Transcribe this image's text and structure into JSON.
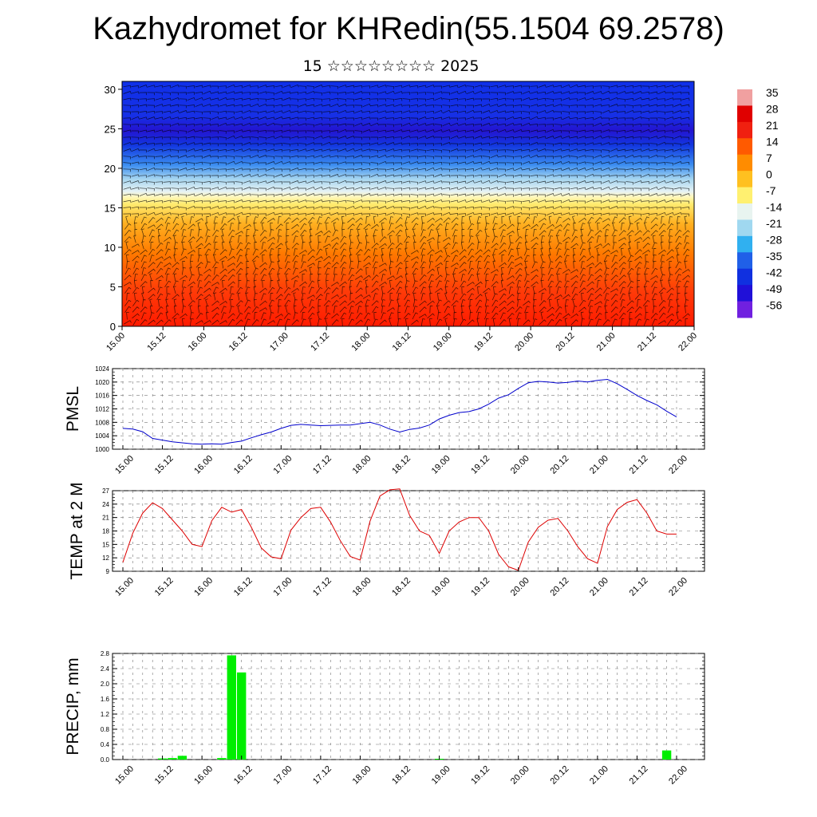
{
  "title": "Kazhydromet for KHRedin(55.1504 69.2578)",
  "subtitle": "15 ☆☆☆☆☆☆☆☆ 2025",
  "time_ticks": [
    "15.00",
    "15.12",
    "16.00",
    "16.12",
    "17.00",
    "17.12",
    "18.00",
    "18.12",
    "19.00",
    "19.12",
    "20.00",
    "20.12",
    "21.00",
    "21.12",
    "22.00"
  ],
  "colors": {
    "pmsl_line": "#0000cc",
    "temp_line": "#dd0000",
    "precip_bar": "#00ee00"
  },
  "chart_data": [
    {
      "type": "heatmap",
      "title": "",
      "ylabel": "",
      "ylim": [
        0,
        31
      ],
      "yticks": [
        0,
        5,
        10,
        15,
        20,
        25,
        30
      ],
      "colorbar": {
        "levels": [
          "35",
          "28",
          "21",
          "14",
          "7",
          "0",
          "-7",
          "-14",
          "-21",
          "-28",
          "-35",
          "-42",
          "-49",
          "-56"
        ],
        "colors": [
          "#f0a0a0",
          "#e00000",
          "#f02010",
          "#ff5a00",
          "#ff8c00",
          "#ffc020",
          "#fff070",
          "#e8f4f0",
          "#a0d8f0",
          "#30b0f0",
          "#2060e8",
          "#1030e0",
          "#2010d8",
          "#7020e0"
        ]
      },
      "wind_barbs": true
    },
    {
      "type": "line",
      "ylabel": "PMSL",
      "ylim": [
        1000,
        1024
      ],
      "yticks": [
        "1024",
        "1020",
        "1016",
        "1012",
        "1008",
        "1004",
        "1000"
      ],
      "x": [
        0,
        3,
        6,
        9,
        12,
        15,
        18,
        21,
        24,
        27,
        30,
        33,
        36,
        39,
        42,
        45,
        48,
        51,
        54,
        57,
        60,
        63,
        66,
        69,
        72,
        75,
        78,
        81,
        84,
        87,
        90,
        93,
        96,
        99,
        102,
        105,
        108,
        111,
        114,
        117,
        120,
        123,
        126,
        129,
        132,
        135,
        138,
        141,
        144,
        147,
        150,
        153,
        156,
        159,
        162,
        165,
        168
      ],
      "values": [
        1006.2,
        1006.0,
        1005.2,
        1003.2,
        1002.7,
        1002.2,
        1001.9,
        1001.6,
        1001.5,
        1001.6,
        1001.5,
        1002.0,
        1002.4,
        1003.4,
        1004.3,
        1005.1,
        1006.2,
        1007.1,
        1007.4,
        1007.2,
        1007.0,
        1007.1,
        1007.2,
        1007.2,
        1007.6,
        1008.0,
        1007.2,
        1006.0,
        1005.1,
        1005.9,
        1006.3,
        1007.2,
        1009.0,
        1010.1,
        1010.9,
        1011.2,
        1012.0,
        1013.4,
        1015.2,
        1016.2,
        1018.1,
        1019.8,
        1020.2,
        1020.0,
        1019.7,
        1019.9,
        1020.3,
        1020.0,
        1020.5,
        1020.8,
        1019.5,
        1017.8,
        1016.0,
        1014.5,
        1013.2,
        1011.3,
        1009.6
      ]
    },
    {
      "type": "line",
      "ylabel": "TEMP at 2 M",
      "ylim": [
        9,
        27
      ],
      "yticks": [
        "27",
        "24",
        "21",
        "18",
        "15",
        "12",
        "9"
      ],
      "x": [
        0,
        3,
        6,
        9,
        12,
        15,
        18,
        21,
        24,
        27,
        30,
        33,
        36,
        39,
        42,
        45,
        48,
        51,
        54,
        57,
        60,
        63,
        66,
        69,
        72,
        75,
        78,
        81,
        84,
        87,
        90,
        93,
        96,
        99,
        102,
        105,
        108,
        111,
        114,
        117,
        120,
        123,
        126,
        129,
        132,
        135,
        138,
        141,
        144,
        147,
        150,
        153,
        156,
        159,
        162,
        165,
        168
      ],
      "values": [
        11.0,
        17.5,
        22.0,
        24.3,
        23.0,
        20.5,
        18.0,
        15.0,
        14.5,
        20.3,
        23.3,
        22.2,
        22.8,
        18.8,
        14.2,
        12.2,
        11.8,
        18.2,
        21.0,
        23.0,
        23.3,
        20.0,
        15.8,
        12.3,
        11.5,
        20.2,
        25.8,
        27.2,
        27.4,
        21.5,
        18.0,
        17.0,
        13.0,
        18.0,
        20.0,
        21.0,
        21.0,
        18.0,
        12.8,
        10.0,
        9.2,
        15.5,
        18.8,
        20.4,
        20.8,
        18.0,
        14.5,
        11.8,
        10.8,
        19.0,
        22.8,
        24.4,
        25.0,
        22.0,
        18.0,
        17.3,
        17.3
      ]
    },
    {
      "type": "bar",
      "ylabel": "PRECIP, mm",
      "ylim": [
        0,
        2.8
      ],
      "yticks": [
        "2.8",
        "2.4",
        "2.0",
        "1.6",
        "1.2",
        "0.8",
        "0.4",
        "0.0"
      ],
      "x": [
        12,
        15,
        18,
        30,
        33,
        36,
        96,
        165
      ],
      "values": [
        0.03,
        0.04,
        0.1,
        0.04,
        2.75,
        2.3,
        0.02,
        0.24
      ]
    }
  ]
}
